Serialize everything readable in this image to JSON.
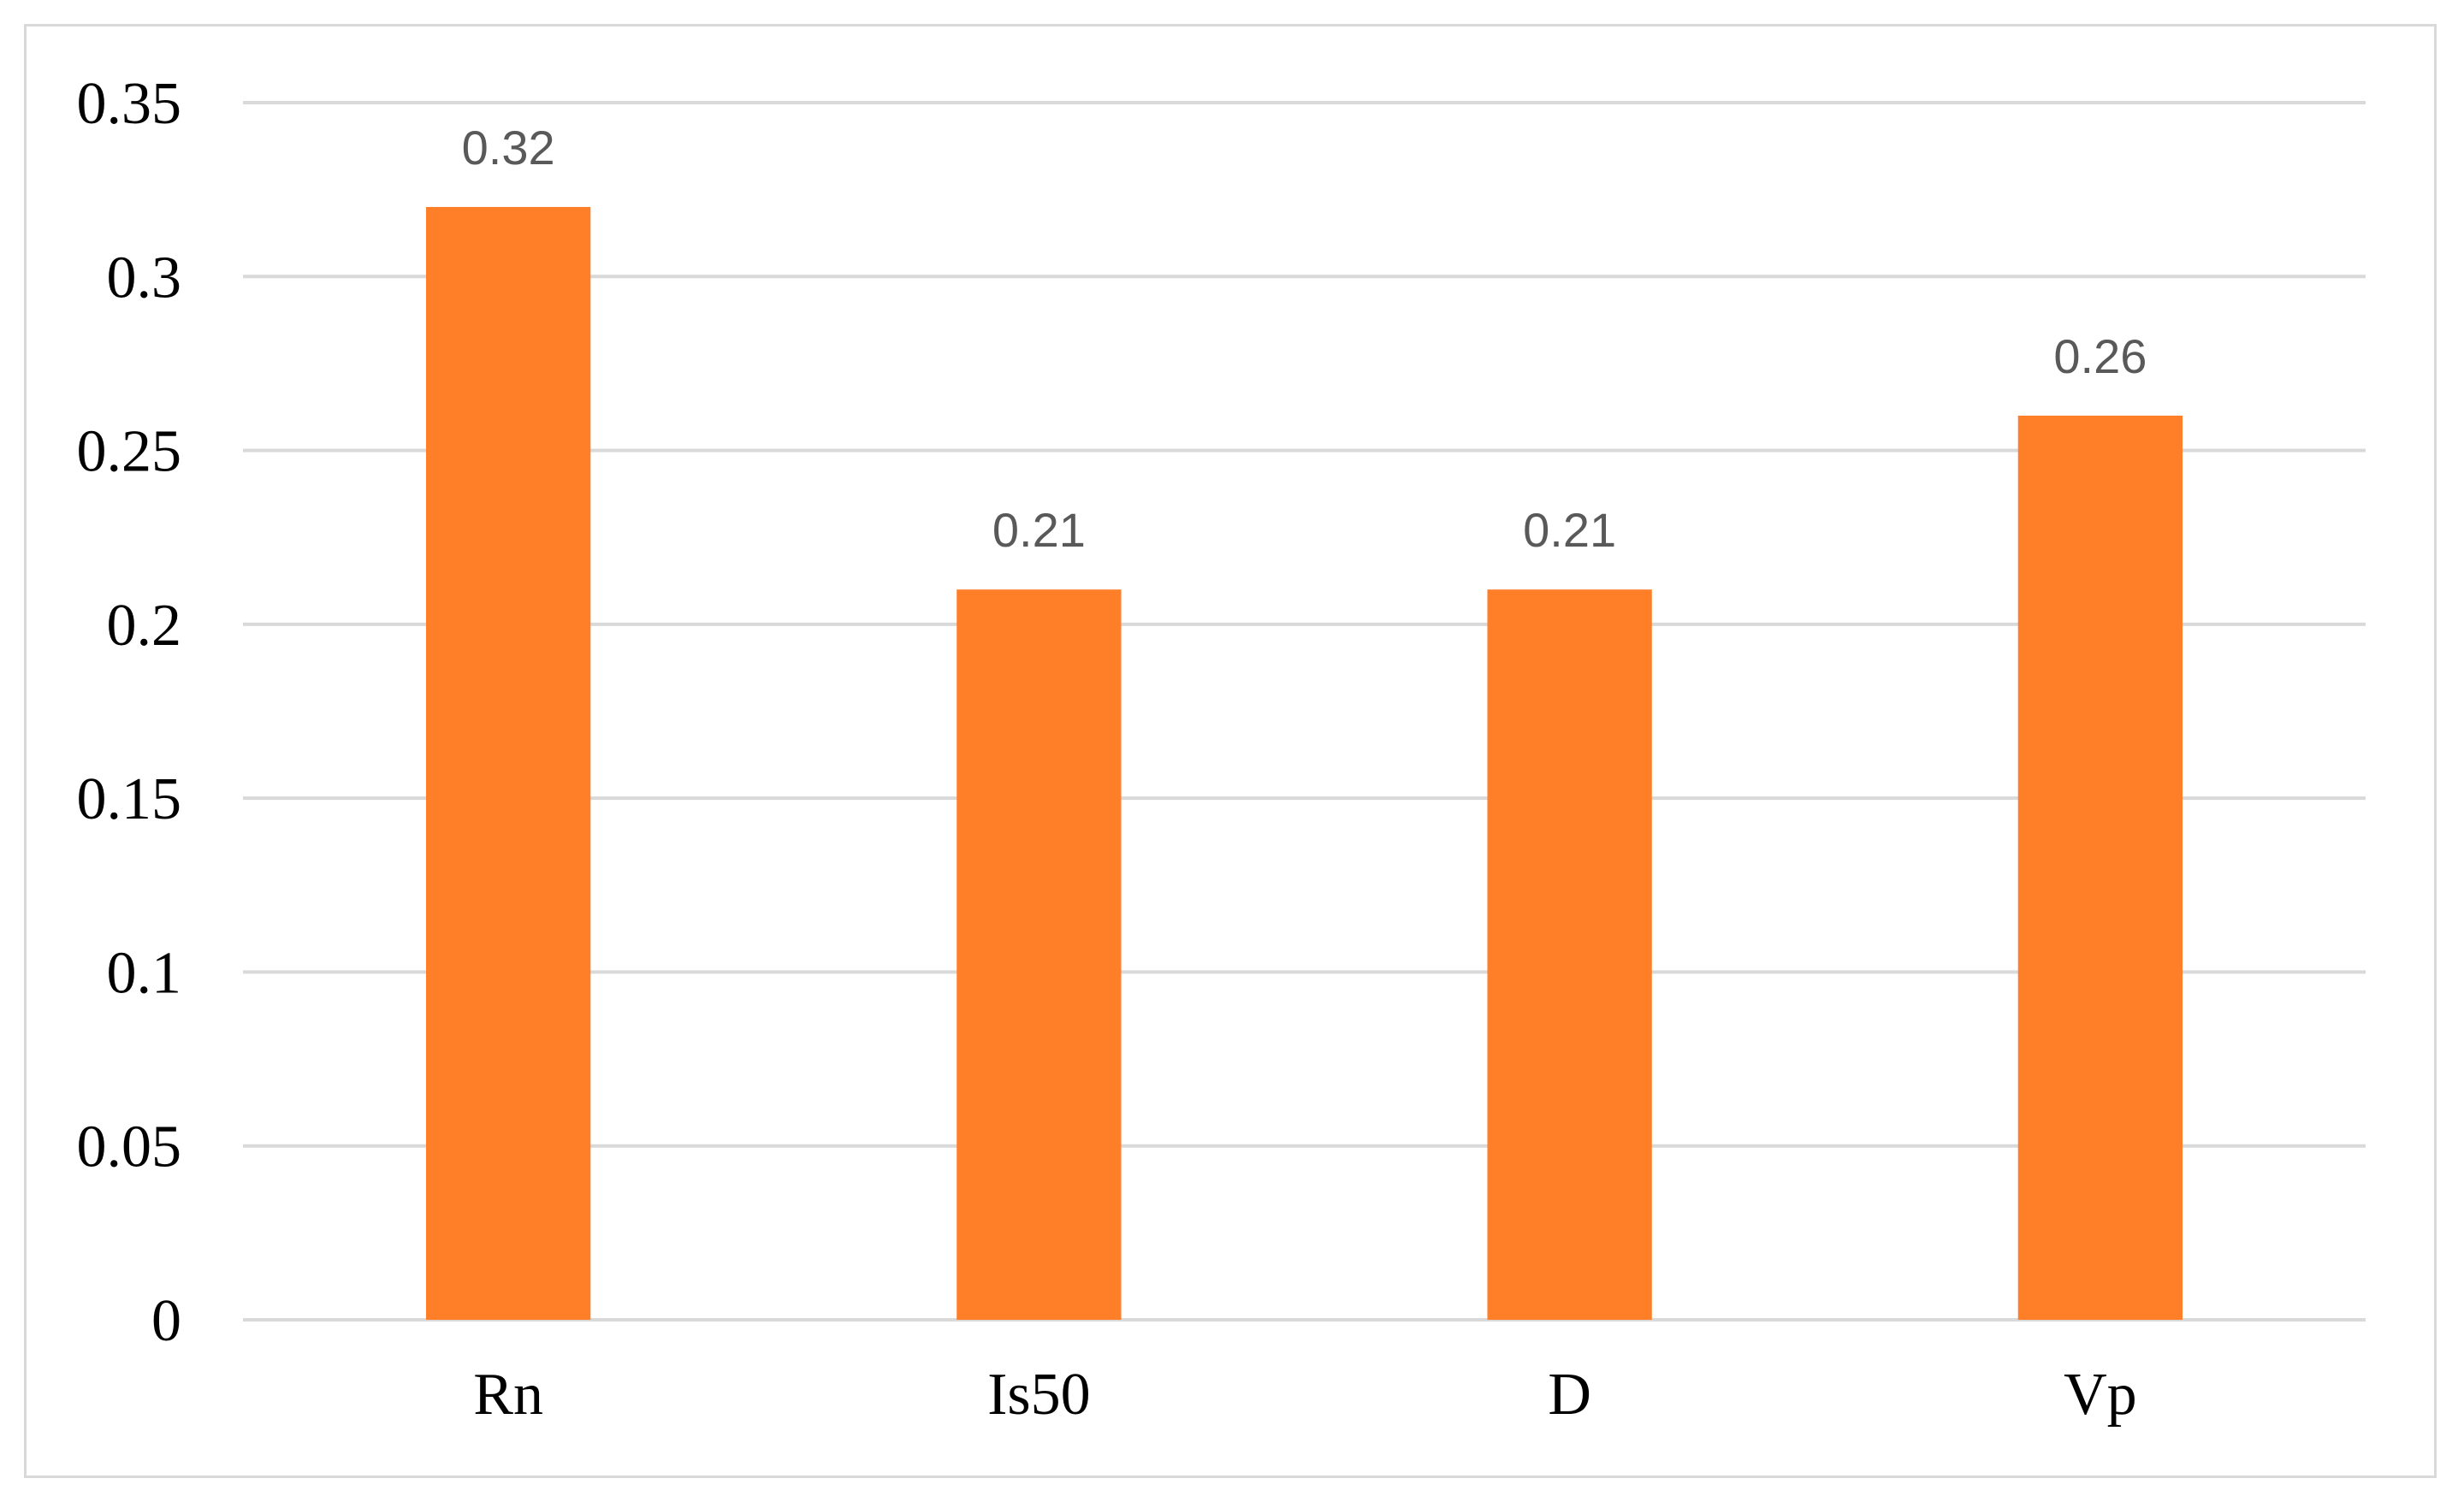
{
  "chart_data": {
    "type": "bar",
    "categories": [
      "Rn",
      "Is50",
      "D",
      "Vp"
    ],
    "values": [
      0.32,
      0.21,
      0.21,
      0.26
    ],
    "data_labels": [
      "0.32",
      "0.21",
      "0.21",
      "0.26"
    ],
    "y_ticks": [
      "0",
      "0.05",
      "0.1",
      "0.15",
      "0.2",
      "0.25",
      "0.3",
      "0.35"
    ],
    "ylim": [
      0,
      0.35
    ],
    "grid": true,
    "bar_color": "#fe7f27",
    "title": "",
    "xlabel": "",
    "ylabel": ""
  }
}
